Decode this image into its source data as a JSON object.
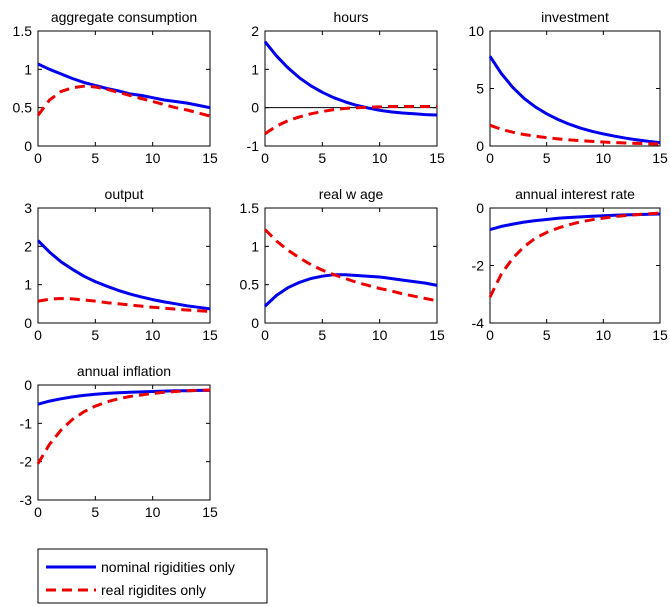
{
  "chart_data": [
    {
      "type": "line",
      "title": "aggregate consumption",
      "xlabel": "",
      "ylabel": "",
      "xlim": [
        0,
        15
      ],
      "ylim": [
        0,
        1.5
      ],
      "xticks": [
        0,
        5,
        10,
        15
      ],
      "xtick_labels": [
        "0",
        "5",
        "10",
        "15"
      ],
      "yticks": [
        0,
        0.5,
        1,
        1.5
      ],
      "ytick_labels": [
        "0",
        "0.5",
        "1",
        "1.5"
      ],
      "zero_line": false,
      "grid": false,
      "x": [
        0,
        1,
        2,
        3,
        4,
        5,
        6,
        7,
        8,
        9,
        10,
        11,
        12,
        13,
        14,
        15
      ],
      "series": [
        {
          "name": "nominal rigidities only",
          "values": [
            1.07,
            1.0,
            0.94,
            0.88,
            0.83,
            0.79,
            0.75,
            0.72,
            0.68,
            0.66,
            0.63,
            0.6,
            0.58,
            0.56,
            0.53,
            0.5
          ]
        },
        {
          "name": "real rigidites only",
          "values": [
            0.4,
            0.6,
            0.71,
            0.76,
            0.78,
            0.77,
            0.74,
            0.7,
            0.66,
            0.62,
            0.58,
            0.54,
            0.5,
            0.47,
            0.43,
            0.39
          ]
        }
      ]
    },
    {
      "type": "line",
      "title": "hours",
      "xlabel": "",
      "ylabel": "",
      "xlim": [
        0,
        15
      ],
      "ylim": [
        -1,
        2
      ],
      "xticks": [
        0,
        5,
        10,
        15
      ],
      "xtick_labels": [
        "0",
        "5",
        "10",
        "15"
      ],
      "yticks": [
        -1,
        0,
        1,
        2
      ],
      "ytick_labels": [
        "-1",
        "0",
        "1",
        "2"
      ],
      "zero_line": true,
      "grid": false,
      "x": [
        0,
        1,
        2,
        3,
        4,
        5,
        6,
        7,
        8,
        9,
        10,
        11,
        12,
        13,
        14,
        15
      ],
      "series": [
        {
          "name": "nominal rigidities only",
          "values": [
            1.72,
            1.35,
            1.04,
            0.78,
            0.57,
            0.4,
            0.26,
            0.15,
            0.06,
            -0.01,
            -0.07,
            -0.11,
            -0.14,
            -0.16,
            -0.18,
            -0.19
          ]
        },
        {
          "name": "real rigidites only",
          "values": [
            -0.68,
            -0.48,
            -0.34,
            -0.24,
            -0.16,
            -0.1,
            -0.05,
            -0.02,
            0.0,
            0.01,
            0.02,
            0.03,
            0.03,
            0.03,
            0.03,
            0.03
          ]
        }
      ]
    },
    {
      "type": "line",
      "title": "investment",
      "xlabel": "",
      "ylabel": "",
      "xlim": [
        0,
        15
      ],
      "ylim": [
        0,
        10
      ],
      "xticks": [
        0,
        5,
        10,
        15
      ],
      "xtick_labels": [
        "0",
        "5",
        "10",
        "15"
      ],
      "yticks": [
        0,
        5,
        10
      ],
      "ytick_labels": [
        "0",
        "5",
        "10"
      ],
      "zero_line": false,
      "grid": false,
      "x": [
        0,
        1,
        2,
        3,
        4,
        5,
        6,
        7,
        8,
        9,
        10,
        11,
        12,
        13,
        14,
        15
      ],
      "series": [
        {
          "name": "nominal rigidities only",
          "values": [
            7.8,
            6.3,
            5.1,
            4.15,
            3.4,
            2.8,
            2.3,
            1.9,
            1.55,
            1.28,
            1.05,
            0.85,
            0.68,
            0.53,
            0.4,
            0.3
          ]
        },
        {
          "name": "real rigidites only",
          "values": [
            1.8,
            1.45,
            1.2,
            1.0,
            0.85,
            0.72,
            0.62,
            0.53,
            0.46,
            0.4,
            0.35,
            0.3,
            0.26,
            0.23,
            0.2,
            0.17
          ]
        }
      ]
    },
    {
      "type": "line",
      "title": "output",
      "xlabel": "",
      "ylabel": "",
      "xlim": [
        0,
        15
      ],
      "ylim": [
        0,
        3
      ],
      "xticks": [
        0,
        5,
        10,
        15
      ],
      "xtick_labels": [
        "0",
        "5",
        "10",
        "15"
      ],
      "yticks": [
        0,
        1,
        2,
        3
      ],
      "ytick_labels": [
        "0",
        "1",
        "2",
        "3"
      ],
      "zero_line": false,
      "grid": false,
      "x": [
        0,
        1,
        2,
        3,
        4,
        5,
        6,
        7,
        8,
        9,
        10,
        11,
        12,
        13,
        14,
        15
      ],
      "series": [
        {
          "name": "nominal rigidities only",
          "values": [
            2.15,
            1.85,
            1.6,
            1.4,
            1.22,
            1.08,
            0.96,
            0.85,
            0.76,
            0.68,
            0.61,
            0.55,
            0.5,
            0.45,
            0.41,
            0.37
          ]
        },
        {
          "name": "real rigidites only",
          "values": [
            0.57,
            0.62,
            0.64,
            0.63,
            0.6,
            0.57,
            0.53,
            0.5,
            0.47,
            0.44,
            0.41,
            0.39,
            0.36,
            0.34,
            0.32,
            0.3
          ]
        }
      ]
    },
    {
      "type": "line",
      "title": "real w age",
      "xlabel": "",
      "ylabel": "",
      "xlim": [
        0,
        15
      ],
      "ylim": [
        0,
        1.5
      ],
      "xticks": [
        0,
        5,
        10,
        15
      ],
      "xtick_labels": [
        "0",
        "5",
        "10",
        "15"
      ],
      "yticks": [
        0,
        0.5,
        1,
        1.5
      ],
      "ytick_labels": [
        "0",
        "0.5",
        "1",
        "1.5"
      ],
      "zero_line": false,
      "grid": false,
      "x": [
        0,
        1,
        2,
        3,
        4,
        5,
        6,
        7,
        8,
        9,
        10,
        11,
        12,
        13,
        14,
        15
      ],
      "series": [
        {
          "name": "nominal rigidities only",
          "values": [
            0.22,
            0.36,
            0.46,
            0.53,
            0.58,
            0.61,
            0.63,
            0.63,
            0.62,
            0.61,
            0.6,
            0.58,
            0.56,
            0.54,
            0.52,
            0.49
          ]
        },
        {
          "name": "real rigidites only",
          "values": [
            1.22,
            1.07,
            0.95,
            0.85,
            0.76,
            0.69,
            0.63,
            0.58,
            0.53,
            0.49,
            0.45,
            0.42,
            0.38,
            0.35,
            0.32,
            0.29
          ]
        }
      ]
    },
    {
      "type": "line",
      "title": "annual interest rate",
      "xlabel": "",
      "ylabel": "",
      "xlim": [
        0,
        15
      ],
      "ylim": [
        -4,
        0
      ],
      "xticks": [
        0,
        5,
        10,
        15
      ],
      "xtick_labels": [
        "0",
        "5",
        "10",
        "15"
      ],
      "yticks": [
        -4,
        -2,
        0
      ],
      "ytick_labels": [
        "-4",
        "-2",
        "0"
      ],
      "zero_line": false,
      "grid": false,
      "x": [
        0,
        1,
        2,
        3,
        4,
        5,
        6,
        7,
        8,
        9,
        10,
        11,
        12,
        13,
        14,
        15
      ],
      "series": [
        {
          "name": "nominal rigidities only",
          "values": [
            -0.75,
            -0.64,
            -0.56,
            -0.49,
            -0.44,
            -0.4,
            -0.36,
            -0.33,
            -0.31,
            -0.29,
            -0.27,
            -0.25,
            -0.24,
            -0.23,
            -0.22,
            -0.21
          ]
        },
        {
          "name": "real rigidites only",
          "values": [
            -3.1,
            -2.3,
            -1.75,
            -1.35,
            -1.05,
            -0.85,
            -0.7,
            -0.58,
            -0.48,
            -0.41,
            -0.35,
            -0.3,
            -0.26,
            -0.23,
            -0.2,
            -0.18
          ]
        }
      ]
    },
    {
      "type": "line",
      "title": "annual inflation",
      "xlabel": "",
      "ylabel": "",
      "xlim": [
        0,
        15
      ],
      "ylim": [
        -3,
        0
      ],
      "xticks": [
        0,
        5,
        10,
        15
      ],
      "xtick_labels": [
        "0",
        "5",
        "10",
        "15"
      ],
      "yticks": [
        -3,
        -2,
        -1,
        0
      ],
      "ytick_labels": [
        "-3",
        "-2",
        "-1",
        "0"
      ],
      "zero_line": false,
      "grid": false,
      "x": [
        0,
        1,
        2,
        3,
        4,
        5,
        6,
        7,
        8,
        9,
        10,
        11,
        12,
        13,
        14,
        15
      ],
      "series": [
        {
          "name": "nominal rigidities only",
          "values": [
            -0.5,
            -0.42,
            -0.36,
            -0.31,
            -0.27,
            -0.24,
            -0.22,
            -0.2,
            -0.19,
            -0.18,
            -0.17,
            -0.16,
            -0.15,
            -0.15,
            -0.14,
            -0.14
          ]
        },
        {
          "name": "real rigidites only",
          "values": [
            -2.05,
            -1.55,
            -1.18,
            -0.9,
            -0.7,
            -0.55,
            -0.44,
            -0.36,
            -0.3,
            -0.26,
            -0.22,
            -0.19,
            -0.17,
            -0.15,
            -0.14,
            -0.13
          ]
        }
      ]
    }
  ],
  "legend": {
    "placement": "bottom-left",
    "entries": [
      {
        "label": "nominal rigidities only",
        "color": "#0000ee",
        "style": "solid"
      },
      {
        "label": "real rigidites only",
        "color": "#ee0000",
        "style": "dashed"
      }
    ]
  }
}
